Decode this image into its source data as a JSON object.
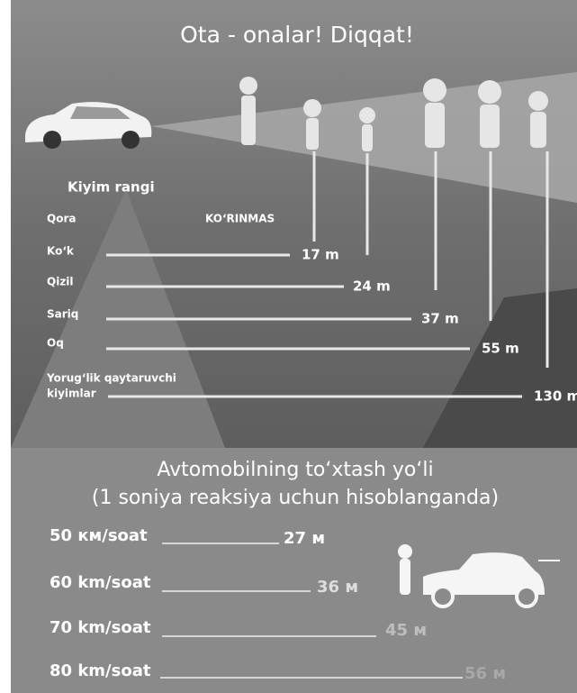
{
  "title": "Ota - onalar! Diqqat!",
  "visibility": {
    "heading": "Kiyim rangi",
    "rows": [
      {
        "label": "Qora",
        "value": "KO‘RINMAS"
      },
      {
        "label": "Ko‘k",
        "value": "17 m"
      },
      {
        "label": "Qizil",
        "value": "24 m"
      },
      {
        "label": "Sariq",
        "value": "37 m"
      },
      {
        "label": "Oq",
        "value": "55 m"
      },
      {
        "label": "Yorug‘lik qaytaruvchi",
        "label2": "kiyimlar",
        "value": "130 m"
      }
    ]
  },
  "stopping": {
    "title_line1": "Avtomobilning to‘xtash yo‘li",
    "title_line2": "(1 soniya reaksiya uchun hisoblanganda)",
    "rows": [
      {
        "speed": "50 км/soat",
        "distance": "27 м"
      },
      {
        "speed": "60 km/soat",
        "distance": "36 м"
      },
      {
        "speed": "70 km/soat",
        "distance": "45 м"
      },
      {
        "speed": "80 km/soat",
        "distance": "56 м"
      }
    ]
  }
}
